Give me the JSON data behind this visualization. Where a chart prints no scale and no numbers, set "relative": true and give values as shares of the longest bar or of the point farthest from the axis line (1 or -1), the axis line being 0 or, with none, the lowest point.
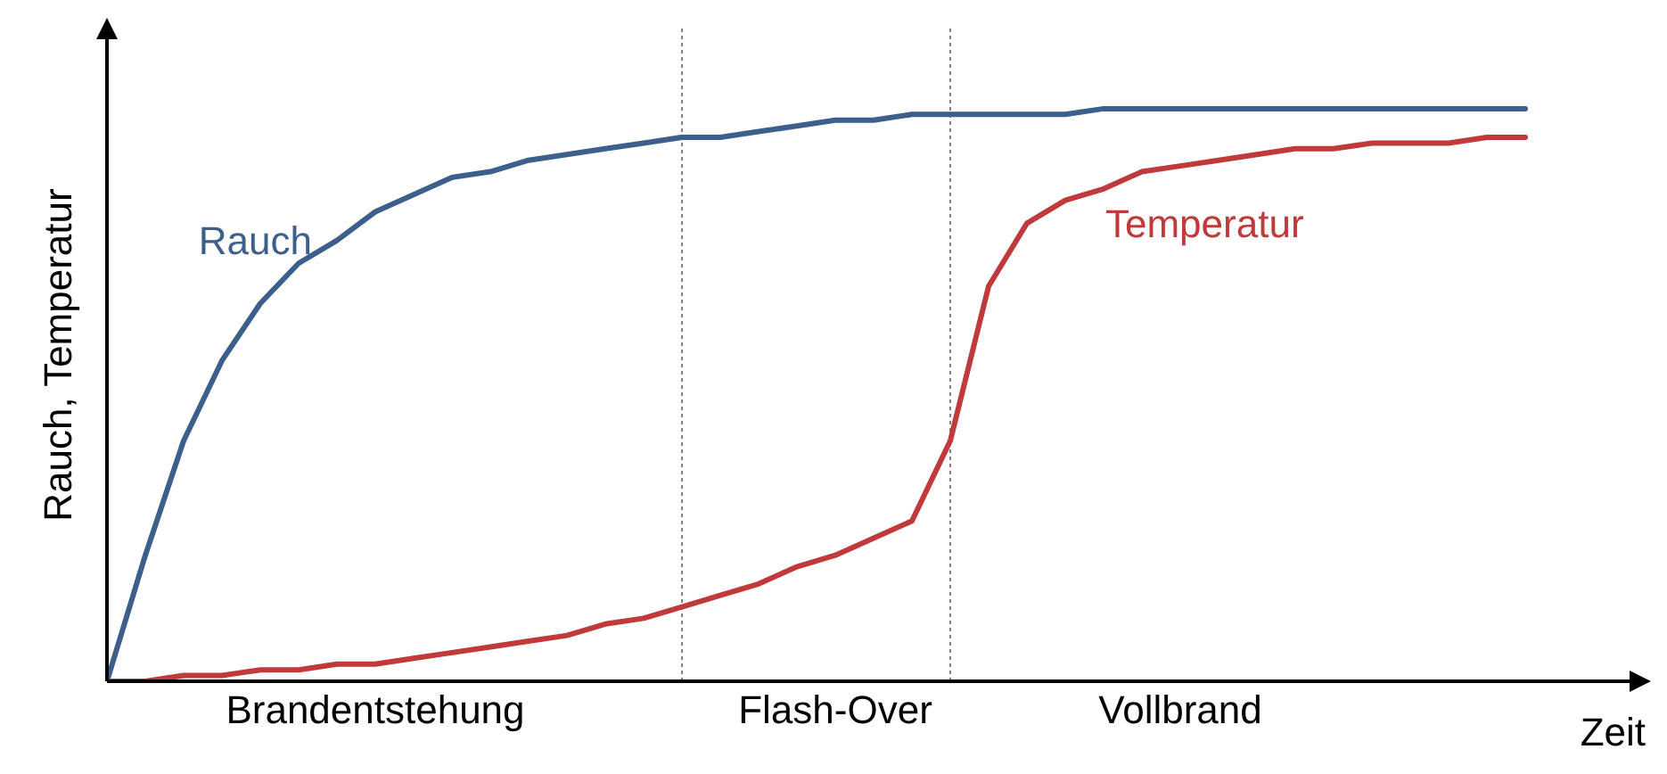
{
  "chart_data": {
    "type": "line",
    "relative": true,
    "ylabel": "Rauch, Temperatur",
    "xlabel": "Zeit",
    "categories": [
      null,
      null,
      null,
      null,
      null,
      null,
      null,
      "Brandentstehung",
      null,
      null,
      null,
      null,
      null,
      null,
      null,
      null,
      null,
      null,
      null,
      "Flash-Over",
      null,
      null,
      null,
      null,
      null,
      null,
      null,
      null,
      "Vollbrand",
      null,
      null,
      null,
      null,
      null,
      null,
      null,
      null,
      null
    ],
    "series": [
      {
        "name": "Rauch",
        "color": "#3d5f8b",
        "values": [
          0,
          0.22,
          0.42,
          0.56,
          0.66,
          0.73,
          0.77,
          0.82,
          0.85,
          0.88,
          0.89,
          0.91,
          0.92,
          0.93,
          0.94,
          0.95,
          0.95,
          0.96,
          0.97,
          0.98,
          0.98,
          0.99,
          0.99,
          0.99,
          0.99,
          0.99,
          1,
          1,
          1,
          1,
          1,
          1,
          1,
          1,
          1,
          1,
          1,
          1
        ]
      },
      {
        "name": "Temperatur",
        "color": "#c0393b",
        "values": [
          0,
          0,
          0.01,
          0.01,
          0.02,
          0.02,
          0.03,
          0.03,
          0.04,
          0.05,
          0.06,
          0.07,
          0.08,
          0.1,
          0.11,
          0.13,
          0.15,
          0.17,
          0.2,
          0.22,
          0.25,
          0.28,
          0.42,
          0.69,
          0.8,
          0.84,
          0.86,
          0.89,
          0.9,
          0.91,
          0.92,
          0.93,
          0.93,
          0.94,
          0.94,
          0.94,
          0.95,
          0.95
        ]
      }
    ],
    "marker": "none",
    "line_style": "solid"
  }
}
